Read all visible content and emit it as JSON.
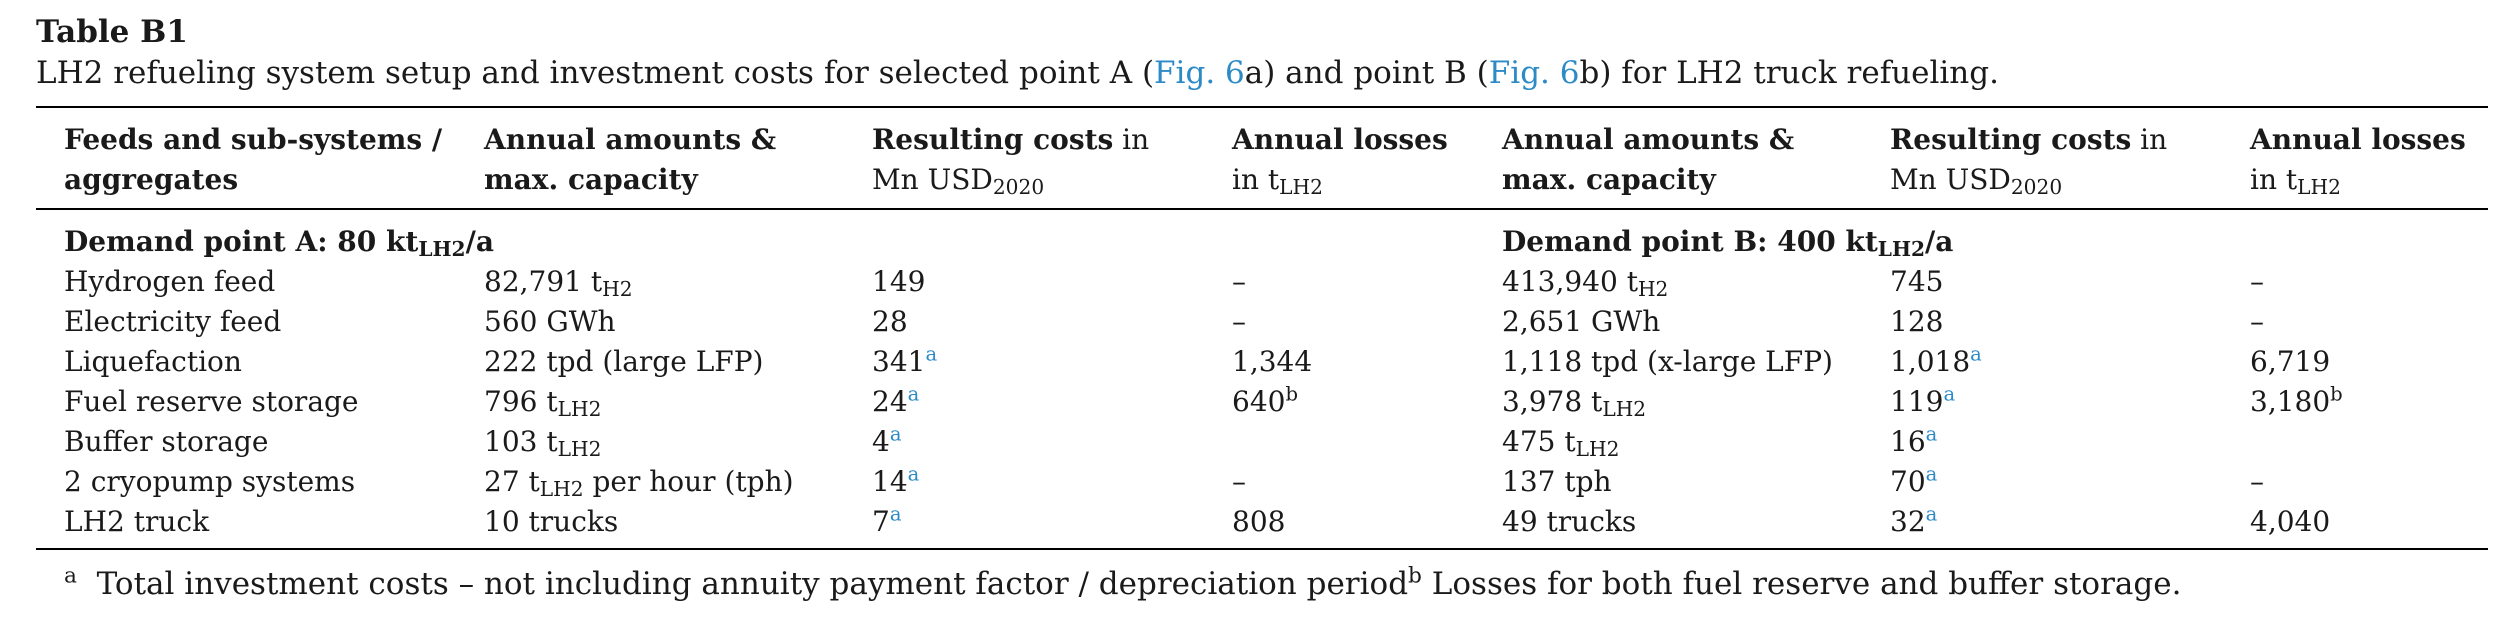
{
  "caption": {
    "label": "Table B1",
    "text_before_fig_a": "LH2 refueling system setup and investment costs for selected point A (",
    "fig_a_link": "Fig. 6",
    "fig_a_suffix": "a",
    "text_between": ") and point B (",
    "fig_b_link": "Fig. 6",
    "fig_b_suffix": "b",
    "text_after": ") for LH2 truck refueling."
  },
  "columns": {
    "feeds": "Feeds and sub-systems / aggregates",
    "amounts_a": "Annual amounts & max. capacity",
    "costs_a_bold": "Resulting costs",
    "costs_a_rest": " in Mn USD",
    "costs_a_sub": "2020",
    "losses_a_bold": "Annual losses",
    "losses_a_rest": "in t",
    "losses_a_sub": "LH2",
    "amounts_b": "Annual amounts & max. capacity",
    "costs_b_bold": "Resulting costs",
    "costs_b_rest": " in Mn USD",
    "costs_b_sub": "2020",
    "losses_b_bold": "Annual losses",
    "losses_b_rest": "in t",
    "losses_b_sub": "LH2"
  },
  "groups": {
    "a_label": "Demand point A: 80 kt",
    "a_sub": "LH2",
    "a_tail": "/a",
    "b_label": "Demand point B: 400 kt",
    "b_sub": "LH2",
    "b_tail": "/a"
  },
  "rows": [
    {
      "name": "Hydrogen feed",
      "amount_a": "82,791 t",
      "amount_a_sub": "H2",
      "amount_a_tail": "",
      "cost_a": "149",
      "cost_a_sup": "",
      "loss_a": "–",
      "loss_a_sup": "",
      "amount_b": "413,940 t",
      "amount_b_sub": "H2",
      "amount_b_tail": "",
      "cost_b": "745",
      "cost_b_sup": "",
      "loss_b": "–",
      "loss_b_sup": ""
    },
    {
      "name": "Electricity feed",
      "amount_a": "560 GWh",
      "amount_a_sub": "",
      "amount_a_tail": "",
      "cost_a": "28",
      "cost_a_sup": "",
      "loss_a": "–",
      "loss_a_sup": "",
      "amount_b": "2,651 GWh",
      "amount_b_sub": "",
      "amount_b_tail": "",
      "cost_b": "128",
      "cost_b_sup": "",
      "loss_b": "–",
      "loss_b_sup": ""
    },
    {
      "name": "Liquefaction",
      "amount_a": "222 tpd (large LFP)",
      "amount_a_sub": "",
      "amount_a_tail": "",
      "cost_a": "341",
      "cost_a_sup": "a",
      "loss_a": "1,344",
      "loss_a_sup": "",
      "amount_b": "1,118 tpd (x-large LFP)",
      "amount_b_sub": "",
      "amount_b_tail": "",
      "cost_b": "1,018",
      "cost_b_sup": "a",
      "loss_b": "6,719",
      "loss_b_sup": ""
    },
    {
      "name": "Fuel reserve storage",
      "amount_a": "796 t",
      "amount_a_sub": "LH2",
      "amount_a_tail": "",
      "cost_a": "24",
      "cost_a_sup": "a",
      "loss_a": "640",
      "loss_a_sup": "b",
      "amount_b": "3,978 t",
      "amount_b_sub": "LH2",
      "amount_b_tail": "",
      "cost_b": "119",
      "cost_b_sup": "a",
      "loss_b": "3,180",
      "loss_b_sup": "b"
    },
    {
      "name": "Buffer storage",
      "amount_a": "103 t",
      "amount_a_sub": "LH2",
      "amount_a_tail": "",
      "cost_a": "4",
      "cost_a_sup": "a",
      "loss_a": "",
      "loss_a_sup": "",
      "amount_b": "475 t",
      "amount_b_sub": "LH2",
      "amount_b_tail": "",
      "cost_b": "16",
      "cost_b_sup": "a",
      "loss_b": "",
      "loss_b_sup": ""
    },
    {
      "name": "2 cryopump systems",
      "amount_a": "27 t",
      "amount_a_sub": "LH2",
      "amount_a_tail": " per hour (tph)",
      "cost_a": "14",
      "cost_a_sup": "a",
      "loss_a": "–",
      "loss_a_sup": "",
      "amount_b": "137 tph",
      "amount_b_sub": "",
      "amount_b_tail": "",
      "cost_b": "70",
      "cost_b_sup": "a",
      "loss_b": "–",
      "loss_b_sup": ""
    },
    {
      "name": "LH2 truck",
      "amount_a": "10 trucks",
      "amount_a_sub": "",
      "amount_a_tail": "",
      "cost_a": "7",
      "cost_a_sup": "a",
      "loss_a": "808",
      "loss_a_sup": "",
      "amount_b": "49 trucks",
      "amount_b_sub": "",
      "amount_b_tail": "",
      "cost_b": "32",
      "cost_b_sup": "a",
      "loss_b": "4,040",
      "loss_b_sup": ""
    }
  ],
  "footnotes": {
    "a_marker": "a",
    "a_text": "Total investment costs – not including annuity payment factor / depreciation period",
    "b_marker": "b",
    "b_text": " Losses for both fuel reserve and buffer storage."
  },
  "colors": {
    "link": "#2c8bc7",
    "text": "#1a1a1a",
    "rule": "#000000"
  }
}
